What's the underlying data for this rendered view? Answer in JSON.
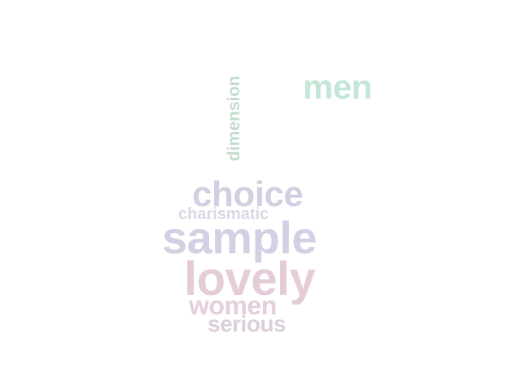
{
  "cloud": {
    "words": [
      {
        "key": "men",
        "text": "men",
        "color": "#c4e6d7"
      },
      {
        "key": "dimension",
        "text": "dimension",
        "color": "#c2dccc"
      },
      {
        "key": "choice",
        "text": "choice",
        "color": "#d2cfe2"
      },
      {
        "key": "charismatic",
        "text": "charismatic",
        "color": "#ddd6e6"
      },
      {
        "key": "sample",
        "text": "sample",
        "color": "#d4d0e4"
      },
      {
        "key": "lovely",
        "text": "lovely",
        "color": "#e4cdd9"
      },
      {
        "key": "women",
        "text": "women",
        "color": "#e4cfdc"
      },
      {
        "key": "serious",
        "text": "serious",
        "color": "#dccfdc"
      }
    ]
  }
}
